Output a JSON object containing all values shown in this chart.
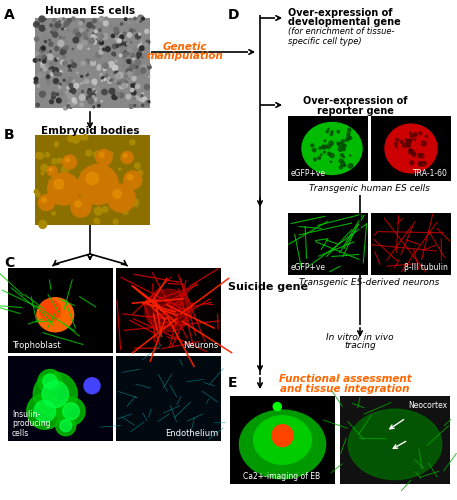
{
  "background_color": "#ffffff",
  "label_A": "A",
  "label_B": "B",
  "label_C": "C",
  "label_D": "D",
  "label_E": "E",
  "title_A": "Human ES cells",
  "title_B": "Embryoid bodies",
  "genetic_text_line1": "Genetic",
  "genetic_text_line2": "manipulation",
  "d_text1_line1": "Over-expression of",
  "d_text1_line2": "developmental gene",
  "d_text1_italic": "(for enrichment of tissue-\nspecific cell type)",
  "d_text2_line1": "Over-expression of",
  "d_text2_line2": "reporter gene",
  "d_label1": "eGFP+ve",
  "d_label2": "TRA-1-60",
  "d_caption1": "Transgenic human ES cells",
  "d_label3": "eGFP+ve",
  "d_label4": "β-III tubulin",
  "d_caption2": "Transgenic ES-derived neurons",
  "d_suicide": "Suicide gene",
  "d_tracing_line1": "In vitro/ in vivo",
  "d_tracing_line2": "tracing",
  "c_label1": "Trophoblast",
  "c_label2": "Neurons",
  "c_label3": "Insulin-\nproducing\ncells",
  "c_label4": "Endothelium",
  "e_text_line1": "Functional assessment",
  "e_text_line2": "and tissue integration",
  "e_label1": "Ca2+-imaging of EB",
  "e_label2": "Neocortex",
  "orange_color": "#FF6600"
}
